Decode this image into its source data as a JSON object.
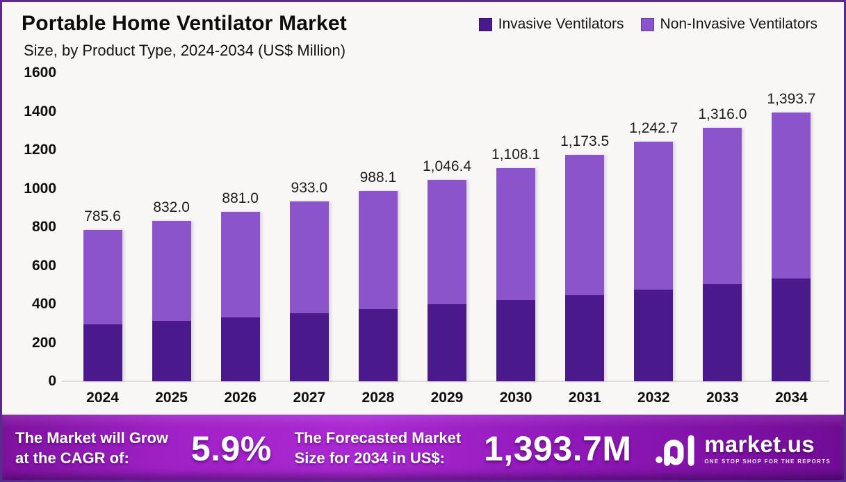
{
  "header": {
    "title": "Portable Home Ventilator Market",
    "subtitle": "Size, by Product Type, 2024-2034 (US$ Million)"
  },
  "legend": [
    {
      "label": "Invasive Ventilators",
      "color": "#4a1a8c"
    },
    {
      "label": "Non-Invasive Ventilators",
      "color": "#8c54ca"
    }
  ],
  "chart_data": {
    "type": "bar",
    "stacked": true,
    "title": "Portable Home Ventilator Market Size, by Product Type, 2024-2034 (US$ Million)",
    "categories": [
      "2024",
      "2025",
      "2026",
      "2027",
      "2028",
      "2029",
      "2030",
      "2031",
      "2032",
      "2033",
      "2034"
    ],
    "series": [
      {
        "name": "Invasive Ventilators",
        "color": "#4a1a8c",
        "values": [
          295.0,
          315.0,
          333.0,
          354.0,
          376.0,
          400.0,
          421.0,
          447.0,
          475.0,
          503.0,
          534.0
        ]
      },
      {
        "name": "Non-Invasive Ventilators",
        "color": "#8c54ca",
        "values": [
          490.6,
          517.0,
          548.0,
          579.0,
          612.1,
          646.4,
          687.1,
          726.5,
          767.7,
          813.0,
          859.7
        ]
      }
    ],
    "totals": [
      785.6,
      832.0,
      881.0,
      933.0,
      988.1,
      1046.4,
      1108.1,
      1173.5,
      1242.7,
      1316.0,
      1393.7
    ],
    "total_labels": [
      "785.6",
      "832.0",
      "881.0",
      "933.0",
      "988.1",
      "1,046.4",
      "1,108.1",
      "1,173.5",
      "1,242.7",
      "1,316.0",
      "1,393.7"
    ],
    "ylim": [
      0,
      1600
    ],
    "yticks": [
      0,
      200,
      400,
      600,
      800,
      1000,
      1200,
      1400,
      1600
    ],
    "grid": false,
    "legend_position": "top-right"
  },
  "footer": {
    "cagr_label_line1": "The Market will Grow",
    "cagr_label_line2": "at the CAGR of:",
    "cagr_value": "5.9%",
    "forecast_label_line1": "The Forecasted Market",
    "forecast_label_line2": "Size for 2034 in US$:",
    "forecast_value": "1,393.7M",
    "brand": "market.us",
    "brand_tagline": "ONE STOP SHOP FOR THE REPORTS"
  }
}
